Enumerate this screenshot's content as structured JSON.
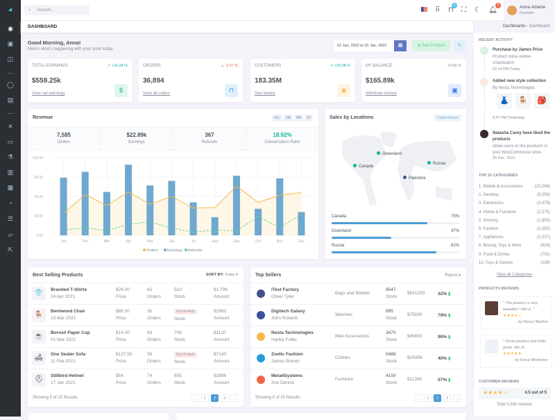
{
  "topbar": {
    "search_placeholder": "Search...",
    "cart_badge": "5",
    "notif_badge": "3",
    "user_name": "Anna Adame",
    "user_role": "Founder"
  },
  "breadcrumb": {
    "page_title": "DASHBOARD",
    "items": [
      "Dashboards",
      "Dashboard"
    ]
  },
  "greeting": {
    "title": "Good Morning, Anna!",
    "subtitle": "Here's what's happening with your store today.",
    "date_range": "01 Jan, 2022 to 31 Jan, 2022",
    "add_product": "Add Product"
  },
  "stats": [
    {
      "label": "TOTAL EARNINGS",
      "change": "+16.24 %",
      "trend": "up",
      "value": "$559.25k",
      "link": "View net earnings",
      "icon": "dollar-icon",
      "color": "#0ab39c",
      "bg": "#e0f6ec"
    },
    {
      "label": "ORDERS",
      "change": "-3.57 %",
      "trend": "down",
      "value": "36,894",
      "link": "View all orders",
      "icon": "shopping-bag-icon",
      "color": "#299cdb",
      "bg": "#dff0fa"
    },
    {
      "label": "CUSTOMERS",
      "change": "+29.08 %",
      "trend": "up",
      "value": "183.35M",
      "link": "See details",
      "icon": "user-circle-icon",
      "color": "#f7b84b",
      "bg": "#fef4e4"
    },
    {
      "label": "MY BALANCE",
      "change": "+0.00 %",
      "trend": "flat",
      "value": "$165.89k",
      "link": "Withdraw money",
      "icon": "wallet-icon",
      "color": "#3577f1",
      "bg": "#e1ebfd"
    }
  ],
  "revenue": {
    "title": "Revenue",
    "filters": [
      "ALL",
      "1M",
      "6M",
      "1Y"
    ],
    "summary": [
      {
        "value": "7,585",
        "label": "Orders"
      },
      {
        "value": "$22.89k",
        "label": "Earnings"
      },
      {
        "value": "367",
        "label": "Refunds"
      },
      {
        "value": "18.92%",
        "label": "Conversation Ratio"
      }
    ]
  },
  "chart_data": {
    "type": "bar",
    "categories": [
      "Jan",
      "Feb",
      "Mar",
      "Apr",
      "May",
      "Jun",
      "Jul",
      "Aug",
      "Sep",
      "Oct",
      "Nov",
      "Dec"
    ],
    "yticks": [
      "0.00",
      "30.00",
      "60.00",
      "90.00",
      "120.00"
    ],
    "ylim": [
      0,
      120
    ],
    "grid": true,
    "legend": "bottom",
    "series": [
      {
        "name": "Orders",
        "type": "area",
        "color": "#f7b84b",
        "values": [
          34,
          63,
          46,
          67,
          48,
          60,
          42,
          43,
          76,
          51,
          62,
          66
        ]
      },
      {
        "name": "Earnings",
        "type": "bar",
        "color": "#6fa8d0",
        "values": [
          89,
          98,
          67,
          109,
          77,
          84,
          51,
          28,
          92,
          41,
          88,
          36
        ]
      },
      {
        "name": "Refunds",
        "type": "line-dashed",
        "color": "#5fd68b",
        "values": [
          8,
          12,
          7,
          17,
          21,
          11,
          5,
          8,
          7,
          29,
          12,
          32
        ]
      }
    ]
  },
  "locations": {
    "title": "Sales by Locations",
    "export": "Export Report",
    "markers": [
      "Greenland",
      "Canada",
      "Russia",
      "Palestine"
    ],
    "bars": [
      {
        "name": "Canada",
        "pct": "75%",
        "value": 75
      },
      {
        "name": "Greenland",
        "pct": "47%",
        "value": 47
      },
      {
        "name": "Russia",
        "pct": "82%",
        "value": 82
      }
    ]
  },
  "best_selling": {
    "title": "Best Selling Products",
    "sort_label": "SORT BY:",
    "sort_value": "Today",
    "footer": "Showing 5 of 25 Results",
    "pages": [
      "←",
      "1",
      "2",
      "3",
      "→"
    ],
    "col_labels": {
      "price": "Price",
      "orders": "Orders",
      "stock": "Stock",
      "amount": "Amount"
    },
    "out_of_stock": "Out of stock",
    "rows": [
      {
        "name": "Branded T-Shirts",
        "date": "24 Apr 2021",
        "price": "$29.00",
        "orders": "62",
        "stock": "510",
        "amount": "$1,798",
        "icon": "👕"
      },
      {
        "name": "Bentwood Chair",
        "date": "19 Mar 2021",
        "price": "$85.20",
        "orders": "35",
        "stock": "",
        "amount": "$2982",
        "icon": "🪑"
      },
      {
        "name": "Borosil Paper Cup",
        "date": "01 Mar 2021",
        "price": "$14.00",
        "orders": "80",
        "stock": "749",
        "amount": "$1120",
        "icon": "☕"
      },
      {
        "name": "One Seater Sofa",
        "date": "11 Feb 2021",
        "price": "$127.50",
        "orders": "56",
        "stock": "",
        "amount": "$7140",
        "icon": "🛋"
      },
      {
        "name": "Stillbird Helmet",
        "date": "17 Jan 2021",
        "price": "$54",
        "orders": "74",
        "stock": "805",
        "amount": "$3996",
        "icon": "⛑"
      }
    ]
  },
  "top_sellers": {
    "title": "Top Sellers",
    "report": "Report",
    "footer": "Showing 5 of 25 Results",
    "pages": [
      "←",
      "1",
      "2",
      "3",
      "→"
    ],
    "stock_label": "Stock",
    "rows": [
      {
        "name": "iTest Factory",
        "owner": "Oliver Tyler",
        "category": "Bags and Wallets",
        "stock": "8547",
        "amount": "$541200",
        "pct": "32%",
        "color": "#405189"
      },
      {
        "name": "Digitech Galaxy",
        "owner": "John Roberts",
        "category": "Watches",
        "stock": "895",
        "amount": "$75030",
        "pct": "79%",
        "color": "#3d4ea0"
      },
      {
        "name": "Nesta Technologies",
        "owner": "Harley Fuller",
        "category": "Bike Accessories",
        "stock": "3470",
        "amount": "$45600",
        "pct": "90%",
        "color": "#f7b84b"
      },
      {
        "name": "Zoetic Fashion",
        "owner": "James Bowen",
        "category": "Clothes",
        "stock": "5488",
        "amount": "$29456",
        "pct": "40%",
        "color": "#299cdb"
      },
      {
        "name": "Meta4Systems",
        "owner": "Zoe Dennis",
        "category": "Furniture",
        "stock": "4100",
        "amount": "$11260",
        "pct": "57%",
        "color": "#f06548"
      }
    ]
  },
  "right": {
    "recent_title": "RECENT ACTIVITY",
    "activities": [
      {
        "title": "Purchase by James Price",
        "desc": "Product noise evolve smartwatch",
        "time": "02:14 PM Today"
      },
      {
        "title": "Added new style collection",
        "desc": "By Nesta Technologies",
        "time": "9:47 PM Yesterday"
      },
      {
        "title": "Natasha Carey have liked the products",
        "desc": "Allow users to like products in your WooCommerce store.",
        "time": "25 Dec, 2021"
      }
    ],
    "categories_title": "TOP 10 CATEGORIES",
    "categories": [
      {
        "name": "1. Mobile & Accessories",
        "count": "(10,294)"
      },
      {
        "name": "2. Desktop",
        "count": "(6,256)"
      },
      {
        "name": "3. Electronics",
        "count": "(3,479)"
      },
      {
        "name": "4. Home & Furniture",
        "count": "(2,275)"
      },
      {
        "name": "5. Grocery",
        "count": "(1,950)"
      },
      {
        "name": "6. Fashion",
        "count": "(1,582)"
      },
      {
        "name": "7. Appliances",
        "count": "(1,037)"
      },
      {
        "name": "8. Beauty, Toys & More",
        "count": "(924)"
      },
      {
        "name": "9. Food & Drinks",
        "count": "(701)"
      },
      {
        "name": "10. Toys & Games",
        "count": "(239)"
      }
    ],
    "view_all": "View all Categories",
    "reviews_title": "PRODUCTS REVIEWS",
    "reviews": [
      {
        "quote": "\" The product is very beautiful. I like it. \"",
        "stars": "★★★★☆",
        "by": "- by Nancy Martino",
        "rating": 4
      },
      {
        "quote": "\" Great product and looks great, lots of...",
        "stars": "★★★★★",
        "by": "- by Force Medicines",
        "rating": 5
      }
    ],
    "customer_title": "CUSTOMER REVIEWS",
    "customer_stars": "★★★★☆",
    "customer_rating": "4.5 out of 5",
    "total_reviews": "Total 5.50k reviews"
  }
}
